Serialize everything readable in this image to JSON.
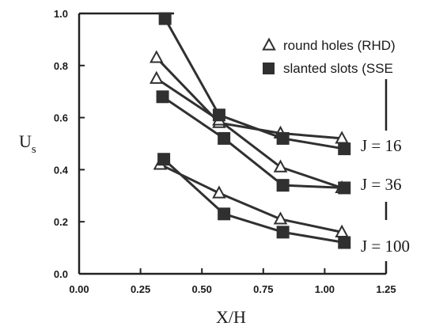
{
  "chart_data": {
    "type": "line",
    "title": "",
    "xlabel": "X/H",
    "ylabel": "U",
    "ylabel_subscript": "s",
    "xlim": [
      0.0,
      1.25
    ],
    "ylim": [
      0.0,
      1.0
    ],
    "xticks": [
      "0.00",
      "0.25",
      "0.50",
      "0.75",
      "1.00",
      "1.25"
    ],
    "yticks": [
      "0.0",
      "0.2",
      "0.4",
      "0.6",
      "0.8",
      "1.0"
    ],
    "legend": {
      "placement": "top-right",
      "entries": [
        {
          "marker": "triangle",
          "label": "round holes  (RHD)"
        },
        {
          "marker": "square",
          "label": "slanted slots  (SSE"
        }
      ]
    },
    "annotations": [
      "J = 16",
      "J = 36",
      "J = 100"
    ],
    "series": [
      {
        "marker": "triangle",
        "x": [
          0.315,
          0.57,
          0.82,
          1.07
        ],
        "y": [
          0.83,
          0.58,
          0.54,
          0.52
        ]
      },
      {
        "marker": "triangle",
        "x": [
          0.315,
          0.57,
          0.82,
          1.07
        ],
        "y": [
          0.75,
          0.59,
          0.41,
          0.33
        ]
      },
      {
        "marker": "triangle",
        "x": [
          0.33,
          0.57,
          0.82,
          1.07
        ],
        "y": [
          0.42,
          0.31,
          0.21,
          0.16
        ]
      },
      {
        "marker": "square",
        "x": [
          0.35,
          0.57,
          0.83,
          1.08
        ],
        "y": [
          0.98,
          0.61,
          0.52,
          0.48
        ]
      },
      {
        "marker": "square",
        "x": [
          0.34,
          0.59,
          0.83,
          1.08
        ],
        "y": [
          0.68,
          0.52,
          0.34,
          0.33
        ]
      },
      {
        "marker": "square",
        "x": [
          0.345,
          0.59,
          0.83,
          1.08
        ],
        "y": [
          0.44,
          0.23,
          0.16,
          0.12
        ]
      }
    ],
    "colors": {
      "line": "#303030",
      "marker": "#303030",
      "axis": "#222222"
    }
  }
}
